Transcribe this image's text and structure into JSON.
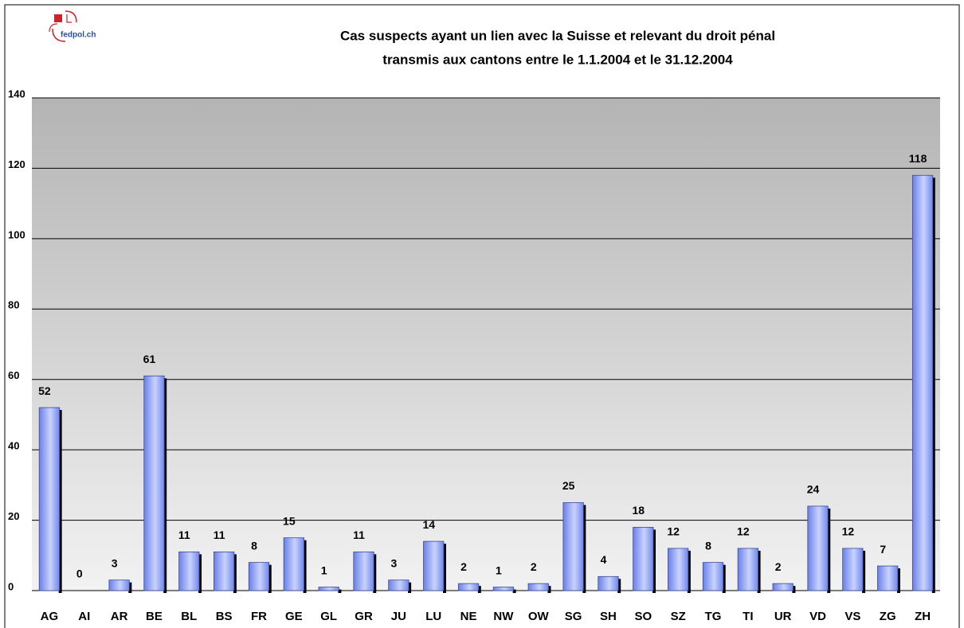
{
  "logo": "fedpol.ch",
  "chart_data": {
    "type": "bar",
    "title": [
      "Cas suspects ayant un lien avec la Suisse et relevant du droit pénal",
      "transmis aux cantons entre le 1.1.2004 et le 31.12.2004"
    ],
    "categories": [
      "AG",
      "AI",
      "AR",
      "BE",
      "BL",
      "BS",
      "FR",
      "GE",
      "GL",
      "GR",
      "JU",
      "LU",
      "NE",
      "NW",
      "OW",
      "SG",
      "SH",
      "SO",
      "SZ",
      "TG",
      "TI",
      "UR",
      "VD",
      "VS",
      "ZG",
      "ZH"
    ],
    "values": [
      52,
      0,
      3,
      61,
      11,
      11,
      8,
      15,
      1,
      11,
      3,
      14,
      2,
      1,
      2,
      25,
      4,
      18,
      12,
      8,
      12,
      2,
      24,
      12,
      7,
      118
    ],
    "color": "#7f95f0",
    "ylim": [
      0,
      140
    ],
    "yticks": [
      0,
      20,
      40,
      60,
      80,
      100,
      120,
      140
    ],
    "grid": true
  }
}
